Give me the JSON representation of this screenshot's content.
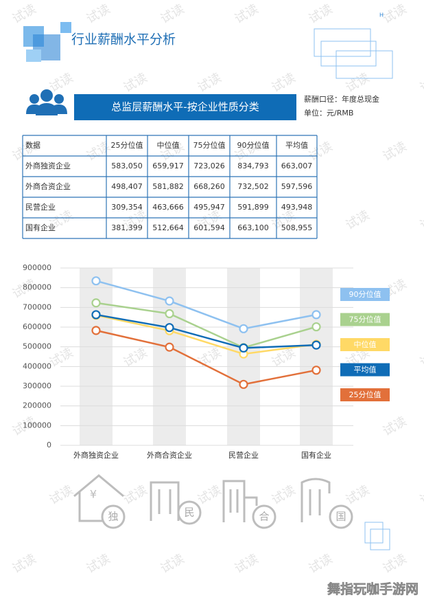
{
  "header": {
    "mark": "H",
    "title": "行业薪酬水平分析"
  },
  "section": {
    "title": "总监层薪酬水平-按企业性质分类",
    "notes": [
      "薪酬口径：年度总现金",
      "单位：元/RMB"
    ]
  },
  "table": {
    "header": [
      "数据",
      "25分位值",
      "中位值",
      "75分位值",
      "90分位值",
      "平均值"
    ],
    "rows": [
      [
        "外商独资企业",
        "583,050",
        "659,917",
        "723,026",
        "834,793",
        "663,007"
      ],
      [
        "外商合资企业",
        "498,407",
        "581,882",
        "668,260",
        "732,502",
        "597,596"
      ],
      [
        "民营企业",
        "309,354",
        "463,666",
        "495,947",
        "591,899",
        "493,948"
      ],
      [
        "国有企业",
        "381,399",
        "512,664",
        "601,594",
        "663,100",
        "508,955"
      ]
    ]
  },
  "chart_data": {
    "type": "line",
    "categories": [
      "外商独资企业",
      "外商合资企业",
      "民营企业",
      "国有企业"
    ],
    "series": [
      {
        "name": "25分位值",
        "color": "#e2703a",
        "values": [
          583050,
          498407,
          309354,
          381399
        ]
      },
      {
        "name": "中位值",
        "color": "#ffd966",
        "values": [
          659917,
          581882,
          463666,
          512664
        ]
      },
      {
        "name": "75分位值",
        "color": "#a9d18e",
        "values": [
          723026,
          668260,
          495947,
          601594
        ]
      },
      {
        "name": "90分位值",
        "color": "#8ec1f0",
        "values": [
          834793,
          732502,
          591899,
          663100
        ]
      },
      {
        "name": "平均值",
        "color": "#0f6cb6",
        "values": [
          663007,
          597596,
          493948,
          508955
        ]
      }
    ],
    "ylim": [
      0,
      900000
    ],
    "yticks": [
      0,
      100000,
      200000,
      300000,
      400000,
      500000,
      600000,
      700000,
      800000,
      900000
    ],
    "grid": true
  },
  "icons": {
    "currency": "¥",
    "labels": [
      "独",
      "民",
      "合",
      "国"
    ]
  },
  "watermark": "试读",
  "site": "舞指玩咖手游网"
}
